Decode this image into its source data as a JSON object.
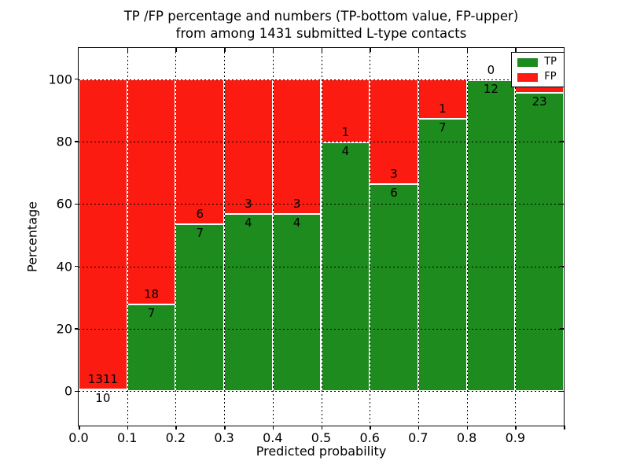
{
  "title": {
    "line1": "TP /FP percentage and numbers (TP-bottom value, FP-upper)",
    "line2": "from among 1431 submitted L-type contacts"
  },
  "chart_data": {
    "type": "bar",
    "stacked": true,
    "title": "TP /FP percentage and numbers (TP-bottom value, FP-upper) from among 1431 submitted L-type contacts",
    "xlabel": "Predicted probability",
    "ylabel": "Percentage",
    "xlim": [
      0.0,
      1.0
    ],
    "ylim": [
      -11,
      110
    ],
    "grid": true,
    "legend_position": "upper right",
    "legend": [
      {
        "label": "TP",
        "color": "#1e8b1e"
      },
      {
        "label": "FP",
        "color": "#fb1b10"
      }
    ],
    "x_ticks": [
      "0.0",
      "0.1",
      "0.2",
      "0.3",
      "0.4",
      "0.5",
      "0.6",
      "0.7",
      "0.8",
      "0.9"
    ],
    "y_ticks": [
      {
        "value": 0,
        "label": "0"
      },
      {
        "value": 20,
        "label": "20"
      },
      {
        "value": 40,
        "label": "40"
      },
      {
        "value": 60,
        "label": "60"
      },
      {
        "value": 80,
        "label": "80"
      },
      {
        "value": 100,
        "label": "100"
      }
    ],
    "bars": [
      {
        "x_start": 0.0,
        "x_end": 0.1,
        "tp_count": "10",
        "fp_count": "1311",
        "tp_percent": 0.76
      },
      {
        "x_start": 0.1,
        "x_end": 0.2,
        "tp_count": "7",
        "fp_count": "18",
        "tp_percent": 28.0
      },
      {
        "x_start": 0.2,
        "x_end": 0.3,
        "tp_count": "7",
        "fp_count": "6",
        "tp_percent": 53.85
      },
      {
        "x_start": 0.3,
        "x_end": 0.4,
        "tp_count": "4",
        "fp_count": "3",
        "tp_percent": 57.14
      },
      {
        "x_start": 0.4,
        "x_end": 0.5,
        "tp_count": "4",
        "fp_count": "3",
        "tp_percent": 57.14
      },
      {
        "x_start": 0.5,
        "x_end": 0.6,
        "tp_count": "4",
        "fp_count": "1",
        "tp_percent": 80.0
      },
      {
        "x_start": 0.6,
        "x_end": 0.7,
        "tp_count": "6",
        "fp_count": "3",
        "tp_percent": 66.67
      },
      {
        "x_start": 0.7,
        "x_end": 0.8,
        "tp_count": "7",
        "fp_count": "1",
        "tp_percent": 87.5
      },
      {
        "x_start": 0.8,
        "x_end": 0.9,
        "tp_count": "12",
        "fp_count": "0",
        "tp_percent": 100.0
      },
      {
        "x_start": 0.9,
        "x_end": 1.0,
        "tp_count": "23",
        "fp_count": "",
        "tp_percent": 95.8
      }
    ]
  }
}
